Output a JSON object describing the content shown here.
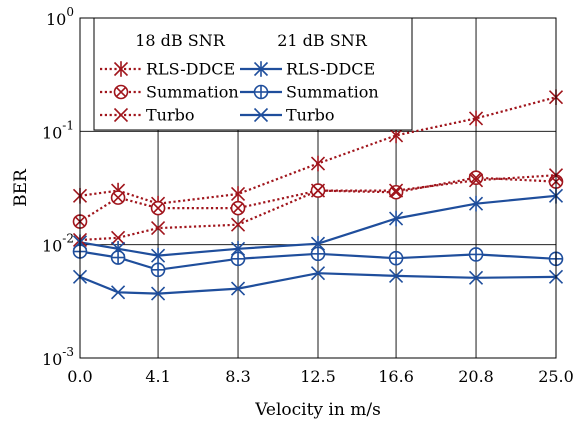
{
  "chart_data": {
    "type": "line",
    "title": "",
    "xlabel": "Velocity in m/s",
    "ylabel": "BER",
    "yscale": "log",
    "ylim": [
      0.001,
      1
    ],
    "y_ticks": [
      {
        "value": 1,
        "base": "10",
        "exp": "0"
      },
      {
        "value": 0.1,
        "base": "10",
        "exp": "-1"
      },
      {
        "value": 0.01,
        "base": "10",
        "exp": "-2"
      },
      {
        "value": 0.001,
        "base": "10",
        "exp": "-3"
      }
    ],
    "x_tick_labels": [
      "0.0",
      "4.1",
      "8.3",
      "12.5",
      "16.6",
      "20.8",
      "25.0"
    ],
    "x_tick_values": [
      0.0,
      4.1,
      8.3,
      12.5,
      16.6,
      20.8,
      25.0
    ],
    "xlim": [
      0,
      25
    ],
    "grid": true,
    "legend": {
      "position": "top-left",
      "headers": [
        "18 dB SNR",
        "21 dB SNR"
      ],
      "entries": [
        "RLS-DDCE",
        "Summation",
        "Turbo"
      ]
    },
    "colors": {
      "snr18": "#a0151c",
      "snr21": "#1f4e9c"
    },
    "series": [
      {
        "group": "18 dB SNR",
        "name": "RLS-DDCE",
        "marker": "asterisk",
        "dash": "dotted",
        "x": [
          0.0,
          2.0,
          4.1,
          8.3,
          12.5,
          16.6,
          20.8,
          25.0
        ],
        "y": [
          0.027,
          0.03,
          0.023,
          0.028,
          0.052,
          0.092,
          0.13,
          0.2
        ]
      },
      {
        "group": "18 dB SNR",
        "name": "Summation",
        "marker": "circle-x",
        "dash": "dotted",
        "x": [
          0.0,
          2.0,
          4.1,
          8.3,
          12.5,
          16.6,
          20.8,
          25.0
        ],
        "y": [
          0.016,
          0.026,
          0.021,
          0.021,
          0.03,
          0.029,
          0.039,
          0.036
        ]
      },
      {
        "group": "18 dB SNR",
        "name": "Turbo",
        "marker": "x",
        "dash": "dotted",
        "x": [
          0.0,
          2.0,
          4.1,
          8.3,
          12.5,
          16.6,
          20.8,
          25.0
        ],
        "y": [
          0.011,
          0.0115,
          0.014,
          0.015,
          0.03,
          0.03,
          0.037,
          0.041
        ]
      },
      {
        "group": "21 dB SNR",
        "name": "RLS-DDCE",
        "marker": "asterisk",
        "dash": "solid",
        "x": [
          0.0,
          2.0,
          4.1,
          8.3,
          12.5,
          16.6,
          20.8,
          25.0
        ],
        "y": [
          0.0105,
          0.0092,
          0.008,
          0.0092,
          0.0102,
          0.017,
          0.023,
          0.027
        ]
      },
      {
        "group": "21 dB SNR",
        "name": "Summation",
        "marker": "circle-plus",
        "dash": "solid",
        "x": [
          0.0,
          2.0,
          4.1,
          8.3,
          12.5,
          16.6,
          20.8,
          25.0
        ],
        "y": [
          0.0087,
          0.0077,
          0.006,
          0.0075,
          0.0083,
          0.0076,
          0.0082,
          0.0075
        ]
      },
      {
        "group": "21 dB SNR",
        "name": "Turbo",
        "marker": "x",
        "dash": "solid",
        "x": [
          0.0,
          2.0,
          4.1,
          8.3,
          12.5,
          16.6,
          20.8,
          25.0
        ],
        "y": [
          0.0052,
          0.0038,
          0.0037,
          0.0041,
          0.0056,
          0.0053,
          0.0051,
          0.0052
        ]
      }
    ]
  }
}
